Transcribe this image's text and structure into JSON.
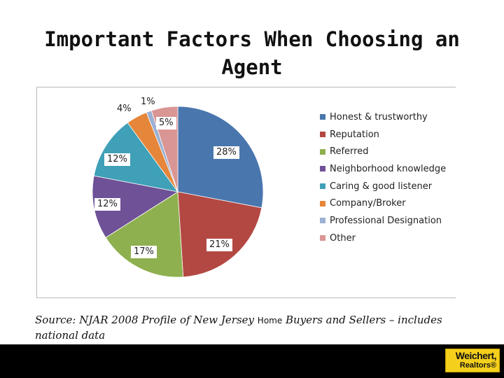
{
  "title_line1": "Important Factors When Choosing an",
  "title_line2": "Agent",
  "chart_data": {
    "type": "pie",
    "title": "Important Factors When Choosing an Agent",
    "categories": [
      "Honest & trustworthy",
      "Reputation",
      "Referred",
      "Neighborhood knowledge",
      "Caring & good listener",
      "Company/Broker",
      "Professional  Designation",
      "Other"
    ],
    "values": [
      28,
      21,
      17,
      12,
      12,
      4,
      1,
      5
    ],
    "labels": [
      "28%",
      "21%",
      "17%",
      "12%",
      "12%",
      "4%",
      "1%",
      "5%"
    ],
    "colors": [
      "#4a76ae",
      "#b34843",
      "#8fb04f",
      "#6e5196",
      "#3fa0b7",
      "#e5863a",
      "#9bb0d3",
      "#d99694"
    ],
    "legend_position": "right"
  },
  "source_part1": "Source:  NJAR 2008 Profile of New Jersey ",
  "source_home": "Home",
  "source_part2": " Buyers and Sellers – includes national data",
  "logo_line1": "Weichert,",
  "logo_line2": "Realtors®"
}
